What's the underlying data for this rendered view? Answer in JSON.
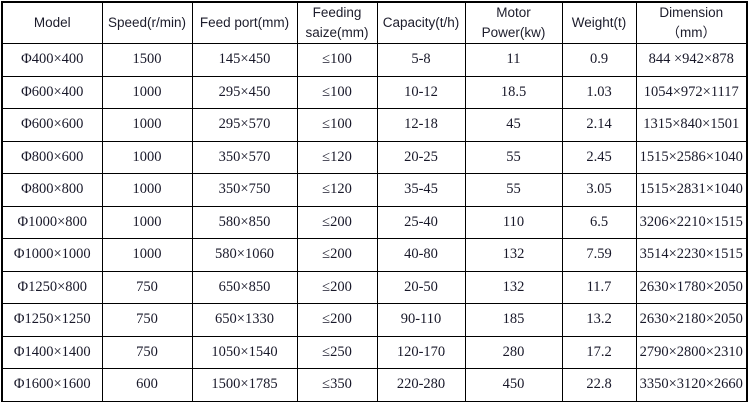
{
  "colors": {
    "background": "#ffffff",
    "border": "#000000",
    "header_text": "#1c1c2b",
    "body_text": "#181829"
  },
  "table": {
    "columns": [
      {
        "label": "Model"
      },
      {
        "label": "Speed(r/min)"
      },
      {
        "label": "Feed port(mm)"
      },
      {
        "label": "Feeding\nsaize(mm)"
      },
      {
        "label": "Capacity(t/h)"
      },
      {
        "label": "Motor\nPower(kw)"
      },
      {
        "label": "Weight(t)"
      },
      {
        "label": "Dimension（mm）"
      }
    ],
    "rows": [
      [
        "Φ400×400",
        "1500",
        "145×450",
        "≤100",
        "5-8",
        "11",
        "0.9",
        "844 ×942×878"
      ],
      [
        "Φ600×400",
        "1000",
        "295×450",
        "≤100",
        "10-12",
        "18.5",
        "1.03",
        "1054×972×1117"
      ],
      [
        "Φ600×600",
        "1000",
        "295×570",
        "≤100",
        "12-18",
        "45",
        "2.14",
        "1315×840×1501"
      ],
      [
        "Φ800×600",
        "1000",
        "350×570",
        "≤120",
        "20-25",
        "55",
        "2.45",
        "1515×2586×1040"
      ],
      [
        "Φ800×800",
        "1000",
        "350×750",
        "≤120",
        "35-45",
        "55",
        "3.05",
        "1515×2831×1040"
      ],
      [
        "Φ1000×800",
        "1000",
        "580×850",
        "≤200",
        "25-40",
        "110",
        "6.5",
        "3206×2210×1515"
      ],
      [
        "Φ1000×1000",
        "1000",
        "580×1060",
        "≤200",
        "40-80",
        "132",
        "7.59",
        "3514×2230×1515"
      ],
      [
        "Φ1250×800",
        "750",
        "650×850",
        "≤200",
        "20-50",
        "132",
        "11.7",
        "2630×1780×2050"
      ],
      [
        "Φ1250×1250",
        "750",
        "650×1330",
        "≤200",
        "90-110",
        "185",
        "13.2",
        "2630×2180×2050"
      ],
      [
        "Φ1400×1400",
        "750",
        "1050×1540",
        "≤250",
        "120-170",
        "280",
        "17.2",
        "2790×2800×2310"
      ],
      [
        "Φ1600×1600",
        "600",
        "1500×1785",
        "≤350",
        "220-280",
        "450",
        "22.8",
        "3350×3120×2660"
      ]
    ]
  }
}
